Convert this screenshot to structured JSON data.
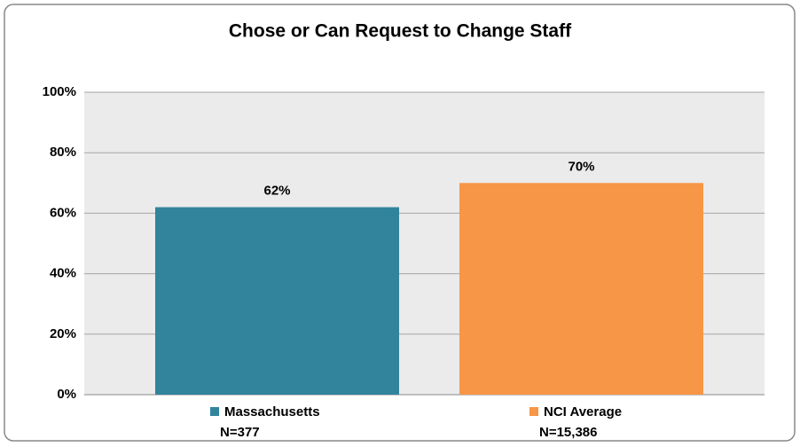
{
  "chart_data": {
    "type": "bar",
    "title": "Chose or Can Request to Change Staff",
    "categories": [
      "Massachusetts",
      "NCI Average"
    ],
    "sample_sizes": [
      "N=377",
      "N=15,386"
    ],
    "values": [
      62,
      70
    ],
    "value_labels": [
      "62%",
      "70%"
    ],
    "colors": [
      "#31849b",
      "#f79646"
    ],
    "ylim": [
      0,
      100
    ],
    "yticks": [
      {
        "value": 0,
        "label": "0%"
      },
      {
        "value": 20,
        "label": "20%"
      },
      {
        "value": 40,
        "label": "40%"
      },
      {
        "value": 60,
        "label": "60%"
      },
      {
        "value": 80,
        "label": "80%"
      },
      {
        "value": 100,
        "label": "100%"
      }
    ],
    "grid": true
  }
}
